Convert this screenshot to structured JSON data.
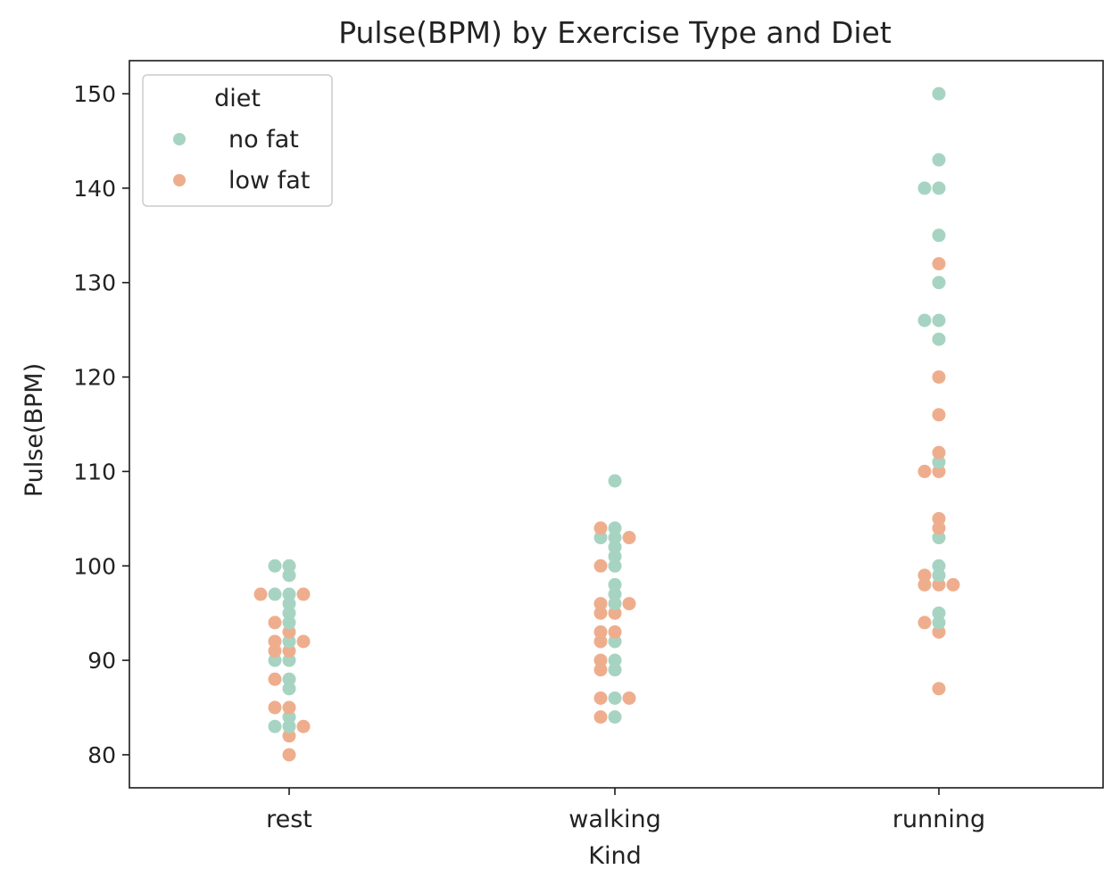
{
  "chart_data": {
    "type": "scatter",
    "subtype": "swarm",
    "title": "Pulse(BPM) by Exercise Type and Diet",
    "xlabel": "Kind",
    "ylabel": "Pulse(BPM)",
    "categories": [
      "rest",
      "walking",
      "running"
    ],
    "ylim": [
      76.5,
      153.5
    ],
    "yticks": [
      80,
      90,
      100,
      110,
      120,
      130,
      140,
      150
    ],
    "ytick_labels": [
      "80",
      "90",
      "100",
      "110",
      "120",
      "130",
      "140",
      "150"
    ],
    "legend": {
      "title": "diet",
      "placement": "top-left",
      "entries": [
        "no fat",
        "low fat"
      ]
    },
    "colors": {
      "no fat": "#a7d4c2",
      "low fat": "#eeae8d"
    },
    "series": [
      {
        "name": "no fat",
        "points": {
          "rest": [
            100,
            100,
            99,
            97,
            97,
            96,
            95,
            94,
            92,
            90,
            90,
            88,
            87,
            84,
            83,
            83
          ],
          "walking": [
            109,
            104,
            103,
            103,
            102,
            101,
            100,
            98,
            97,
            96,
            92,
            90,
            89,
            86,
            84
          ],
          "running": [
            150,
            143,
            140,
            140,
            135,
            130,
            126,
            126,
            124,
            111,
            103,
            100,
            99,
            95,
            94
          ]
        }
      },
      {
        "name": "low fat",
        "points": {
          "rest": [
            97,
            97,
            94,
            93,
            92,
            92,
            91,
            91,
            88,
            85,
            85,
            83,
            82,
            80
          ],
          "walking": [
            104,
            103,
            100,
            96,
            96,
            95,
            95,
            93,
            93,
            92,
            90,
            89,
            86,
            86,
            84
          ],
          "running": [
            132,
            120,
            116,
            112,
            110,
            110,
            105,
            104,
            99,
            98,
            98,
            98,
            94,
            93,
            87
          ]
        }
      }
    ]
  }
}
